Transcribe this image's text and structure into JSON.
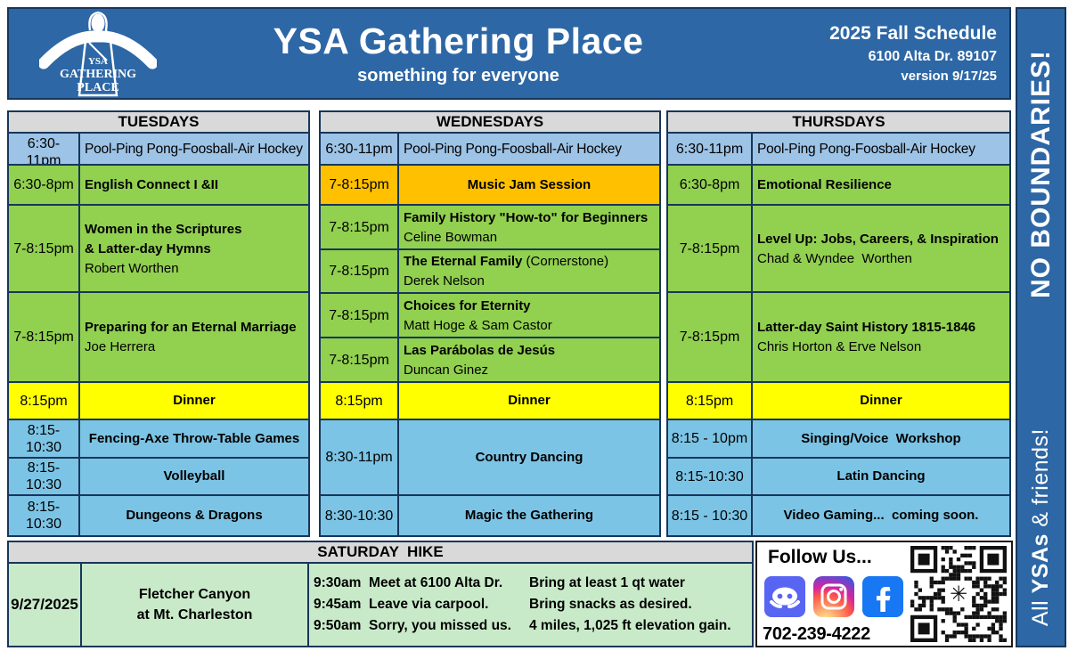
{
  "header": {
    "title": "YSA Gathering Place",
    "subtitle": "something for everyone",
    "schedule_title": "2025 Fall Schedule",
    "address": "6100 Alta Dr. 89107",
    "version": "version 9/17/25",
    "logo": {
      "line1": "YSA",
      "line2": "GATHERING",
      "line3": "PLACE"
    }
  },
  "sidebar": {
    "top": "NO BOUNDARIES!",
    "bottom_pre": "All ",
    "bottom_bold": "YSAs",
    "bottom_post": " & friends!"
  },
  "days": [
    {
      "label": "TUESDAYS",
      "rows": [
        {
          "time": "6:30-\n11pm",
          "title": "Pool-Ping Pong-Foosball-Air Hockey"
        },
        {
          "time": "6:30-8pm",
          "title": "English Connect I &II"
        },
        {
          "time": "7-8:15pm",
          "title": "Women in the Scriptures\n& Latter-day Hymns",
          "presenter": "Robert Worthen"
        },
        {
          "time": "7-8:15pm",
          "title": "Preparing for an Eternal Marriage",
          "presenter": "Joe Herrera"
        },
        {
          "time": "8:15pm",
          "title": "Dinner"
        },
        {
          "time": "8:15-\n10:30",
          "title": "Fencing-Axe Throw-Table Games"
        },
        {
          "time": "8:15-\n10:30",
          "title": "Volleyball"
        },
        {
          "time": "8:15-\n10:30",
          "title": "Dungeons & Dragons"
        }
      ]
    },
    {
      "label": "WEDNESDAYS",
      "rows": [
        {
          "time": "6:30-11pm",
          "title": "Pool-Ping Pong-Foosball-Air Hockey"
        },
        {
          "time": "7-8:15pm",
          "title": "Music Jam Session"
        },
        {
          "time": "7-8:15pm",
          "title": "Family History \"How-to\" for Beginners",
          "presenter": "Celine Bowman"
        },
        {
          "time": "7-8:15pm",
          "title": "The Eternal Family",
          "suffix": " (Cornerstone)",
          "presenter": "Derek Nelson"
        },
        {
          "time": "7-8:15pm",
          "title": "Choices for Eternity",
          "presenter": "Matt Hoge & Sam Castor"
        },
        {
          "time": "7-8:15pm",
          "title": "Las Parábolas de Jesús",
          "presenter": "Duncan Ginez"
        },
        {
          "time": "8:15pm",
          "title": "Dinner"
        },
        {
          "time": "8:30-11pm",
          "title": "Country Dancing"
        },
        {
          "time": "8:30-10:30",
          "title": "Magic the Gathering"
        }
      ]
    },
    {
      "label": "THURSDAYS",
      "rows": [
        {
          "time": "6:30-11pm",
          "title": "Pool-Ping Pong-Foosball-Air Hockey"
        },
        {
          "time": "6:30-8pm",
          "title": "Emotional Resilience"
        },
        {
          "time": "7-8:15pm",
          "title": "Level Up: Jobs, Careers, & Inspiration",
          "presenter": "Chad & Wyndee  Worthen"
        },
        {
          "time": "7-8:15pm",
          "title": "Latter-day Saint History 1815-1846",
          "presenter": "Chris Horton & Erve Nelson"
        },
        {
          "time": "8:15pm",
          "title": "Dinner"
        },
        {
          "time": "8:15 - 10pm",
          "title": "Singing/Voice  Workshop"
        },
        {
          "time": "8:15-10:30",
          "title": "Latin Dancing"
        },
        {
          "time": "8:15 - 10:30",
          "title": "Video Gaming...  coming soon."
        }
      ]
    }
  ],
  "saturday": {
    "header": "SATURDAY  HIKE",
    "date": "9/27/2025",
    "location": "Fletcher Canyon\nat Mt. Charleston",
    "details": [
      {
        "left": "9:30am  Meet at 6100 Alta Dr.",
        "right": "Bring at least 1 qt water"
      },
      {
        "left": "9:45am  Leave via carpool.",
        "right": "Bring snacks as desired."
      },
      {
        "left": "9:50am  Sorry, you missed us.",
        "right": "4 miles, 1,025 ft elevation gain."
      }
    ]
  },
  "follow": {
    "label": "Follow Us...",
    "phone": "702-239-4222",
    "icons": [
      "discord-icon",
      "instagram-icon",
      "facebook-icon"
    ],
    "qr_center_glyph": "✳"
  },
  "colors": {
    "header_blue": "#2D67A5",
    "border_navy": "#17365C",
    "day_header_gray": "#D9D9D9",
    "light_blue": "#9DC3E6",
    "sky_blue": "#7CC4E5",
    "green": "#92D050",
    "yellow": "#FFFF00",
    "orange": "#FFC000",
    "pale_green": "#C9EAC9",
    "discord": "#5865F2",
    "facebook": "#1877F2"
  }
}
